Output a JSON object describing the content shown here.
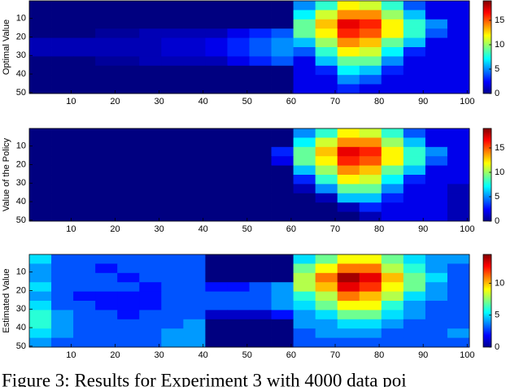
{
  "chart_data": [
    {
      "type": "heatmap",
      "ylabel": "Optimal Value",
      "x": [
        3,
        8,
        13,
        18,
        23,
        28,
        33,
        38,
        43,
        48,
        53,
        58,
        63,
        68,
        73,
        78,
        83,
        88,
        93,
        98
      ],
      "y": [
        3,
        8,
        13,
        18,
        23,
        28,
        33,
        38,
        43,
        48
      ],
      "xlim": [
        0.5,
        100.5
      ],
      "ylim": [
        0.5,
        50.5
      ],
      "y_reverse": true,
      "xticks": [
        10,
        20,
        30,
        40,
        50,
        60,
        70,
        80,
        90,
        100
      ],
      "yticks": [
        10,
        20,
        30,
        40,
        50
      ],
      "colormap": "jet",
      "clim": [
        0,
        19
      ],
      "cticks": [
        0,
        5,
        10,
        15
      ],
      "values": [
        [
          0,
          0,
          0,
          0,
          0,
          0,
          0,
          0,
          0,
          0,
          0,
          0,
          5,
          8,
          12,
          11,
          8,
          4,
          2,
          2
        ],
        [
          0,
          0,
          0,
          0,
          0,
          0,
          0,
          0,
          0,
          0,
          0,
          0,
          7,
          11,
          14,
          14,
          10,
          6,
          2,
          2
        ],
        [
          0,
          0,
          0,
          0,
          0,
          0,
          0,
          0,
          0,
          0,
          0,
          0,
          9,
          13,
          17,
          16,
          12,
          8,
          5,
          2
        ],
        [
          0,
          0,
          0,
          0.5,
          0.5,
          1,
          1,
          1,
          1,
          2,
          3,
          4,
          9,
          12,
          16,
          15,
          12,
          8,
          4,
          2
        ],
        [
          1,
          1,
          1,
          1,
          1,
          1,
          1.5,
          1.5,
          2,
          3,
          4,
          5,
          6,
          10,
          14,
          13,
          9,
          6,
          2,
          2
        ],
        [
          1,
          1,
          1,
          1,
          1,
          1,
          1.5,
          1.5,
          2,
          3,
          4,
          5,
          4,
          8,
          12,
          11,
          7,
          3,
          2,
          2
        ],
        [
          0,
          0,
          0,
          0.5,
          0.5,
          1,
          1,
          1,
          1,
          2,
          3,
          4,
          2,
          6,
          9,
          9,
          5,
          2,
          2,
          2
        ],
        [
          0,
          0,
          0,
          0,
          0,
          0,
          0,
          0,
          0,
          0,
          0,
          0,
          2,
          3,
          7,
          6,
          3,
          2,
          2,
          2
        ],
        [
          0,
          0,
          0,
          0,
          0,
          0,
          0,
          0,
          0,
          0,
          0,
          0,
          2,
          2,
          5,
          4,
          2,
          2,
          2,
          2
        ],
        [
          0,
          0,
          0,
          0,
          0,
          0,
          0,
          0,
          0,
          0,
          0,
          0,
          2,
          2,
          3,
          2,
          2,
          2,
          2,
          2
        ]
      ]
    },
    {
      "type": "heatmap",
      "ylabel": "Value of the Policy",
      "x": [
        3,
        8,
        13,
        18,
        23,
        28,
        33,
        38,
        43,
        48,
        53,
        58,
        63,
        68,
        73,
        78,
        83,
        88,
        93,
        98
      ],
      "y": [
        3,
        8,
        13,
        18,
        23,
        28,
        33,
        38,
        43,
        48
      ],
      "xlim": [
        0.5,
        100.5
      ],
      "ylim": [
        0.5,
        50.5
      ],
      "y_reverse": true,
      "xticks": [
        10,
        20,
        30,
        40,
        50,
        60,
        70,
        80,
        90,
        100
      ],
      "yticks": [
        10,
        20,
        30,
        40,
        50
      ],
      "colormap": "jet",
      "clim": [
        0,
        19
      ],
      "cticks": [
        0,
        5,
        10,
        15
      ],
      "values": [
        [
          0,
          0,
          0,
          0,
          0,
          0,
          0,
          0,
          0,
          0,
          0,
          0,
          5,
          8,
          12,
          11,
          8,
          4,
          2,
          2
        ],
        [
          0,
          0,
          0,
          0,
          0,
          0,
          0,
          0,
          0,
          0,
          0,
          0,
          7,
          11,
          14,
          14,
          10,
          6,
          2,
          2
        ],
        [
          0,
          0,
          0,
          0,
          0,
          0,
          0,
          0,
          0,
          0,
          0,
          3,
          9,
          13,
          17,
          16,
          12,
          8,
          5,
          2
        ],
        [
          0,
          0,
          0,
          0,
          0,
          0,
          0,
          0,
          0,
          0,
          0,
          2,
          9,
          12,
          16,
          15,
          12,
          8,
          4,
          2
        ],
        [
          0,
          0,
          0,
          0,
          0,
          0,
          0,
          0,
          0,
          0,
          0,
          0,
          6,
          10,
          14,
          13,
          9,
          6,
          2,
          2
        ],
        [
          0,
          0,
          0,
          0,
          0,
          0,
          0,
          0,
          0,
          0,
          0,
          0,
          3,
          8,
          12,
          11,
          7,
          3,
          2,
          2
        ],
        [
          0,
          0,
          0,
          0,
          0,
          0,
          0,
          0,
          0,
          0,
          0,
          0,
          1,
          5,
          9,
          9,
          5,
          2,
          2,
          1
        ],
        [
          0,
          0,
          0,
          0,
          0,
          0,
          0,
          0,
          0,
          0,
          0,
          0,
          0,
          1,
          6,
          6,
          3,
          2,
          2,
          1
        ],
        [
          0,
          0,
          0,
          0,
          0,
          0,
          0,
          0,
          0,
          0,
          0,
          0,
          0,
          0,
          1,
          3,
          2,
          2,
          2,
          1
        ],
        [
          0,
          0,
          0,
          0,
          0,
          0,
          0,
          0,
          0,
          0,
          0,
          0,
          0,
          0,
          0,
          1,
          2,
          2,
          2,
          1
        ]
      ]
    },
    {
      "type": "heatmap",
      "ylabel": "Estimated Value",
      "x": [
        3,
        8,
        13,
        18,
        23,
        28,
        33,
        38,
        43,
        48,
        53,
        58,
        63,
        68,
        73,
        78,
        83,
        88,
        93,
        98
      ],
      "y": [
        3,
        8,
        13,
        18,
        23,
        28,
        33,
        38,
        43,
        48
      ],
      "xlim": [
        0.5,
        100.5
      ],
      "ylim": [
        0.5,
        50.5
      ],
      "y_reverse": true,
      "xticks": [
        10,
        20,
        30,
        40,
        50,
        60,
        70,
        80,
        90,
        100
      ],
      "yticks": [
        10,
        20,
        30,
        40,
        50
      ],
      "colormap": "jet",
      "clim": [
        0,
        14.5
      ],
      "cticks": [
        0,
        5,
        10
      ],
      "values": [
        [
          5,
          3,
          3,
          3,
          3,
          3,
          3,
          3,
          0,
          0,
          0,
          0,
          5,
          7,
          9,
          9,
          7,
          5,
          4,
          4
        ],
        [
          4,
          3,
          3,
          2,
          3,
          3,
          3,
          3,
          0,
          0,
          0,
          0,
          7,
          9,
          11,
          11,
          8,
          6,
          4,
          3
        ],
        [
          4,
          3,
          3,
          3,
          2,
          3,
          3,
          3,
          0,
          0,
          0,
          0,
          8,
          11,
          14,
          13,
          10,
          7,
          5,
          3
        ],
        [
          5,
          3,
          3,
          3,
          3,
          2,
          3,
          3,
          2,
          2,
          3,
          4,
          8,
          10,
          13,
          12,
          9,
          7,
          4,
          3
        ],
        [
          4,
          3,
          2,
          2,
          2,
          2,
          3,
          3,
          3,
          3,
          3,
          4,
          6,
          8,
          11,
          10,
          8,
          5,
          4,
          3
        ],
        [
          5,
          3,
          3,
          2,
          2,
          2,
          3,
          3,
          3,
          3,
          3,
          4,
          5,
          7,
          9,
          9,
          6,
          4,
          3,
          3
        ],
        [
          6,
          4,
          3,
          3,
          2,
          3,
          3,
          3,
          1,
          1,
          1,
          2,
          4,
          5,
          7,
          7,
          5,
          4,
          3,
          3
        ],
        [
          6,
          4,
          3,
          3,
          3,
          3,
          3,
          4,
          0,
          0,
          0,
          0,
          4,
          4,
          5,
          5,
          4,
          3,
          3,
          3
        ],
        [
          5,
          4,
          3,
          3,
          3,
          3,
          4,
          4,
          0,
          0,
          0,
          0,
          3,
          4,
          4,
          4,
          3,
          3,
          3,
          4
        ],
        [
          4,
          3,
          3,
          3,
          3,
          3,
          4,
          4,
          0,
          0,
          0,
          0,
          3,
          3,
          3,
          3,
          3,
          3,
          3,
          3
        ]
      ]
    }
  ],
  "caption": "Figure 3: Results for Experiment 3 with 4000 data poi"
}
